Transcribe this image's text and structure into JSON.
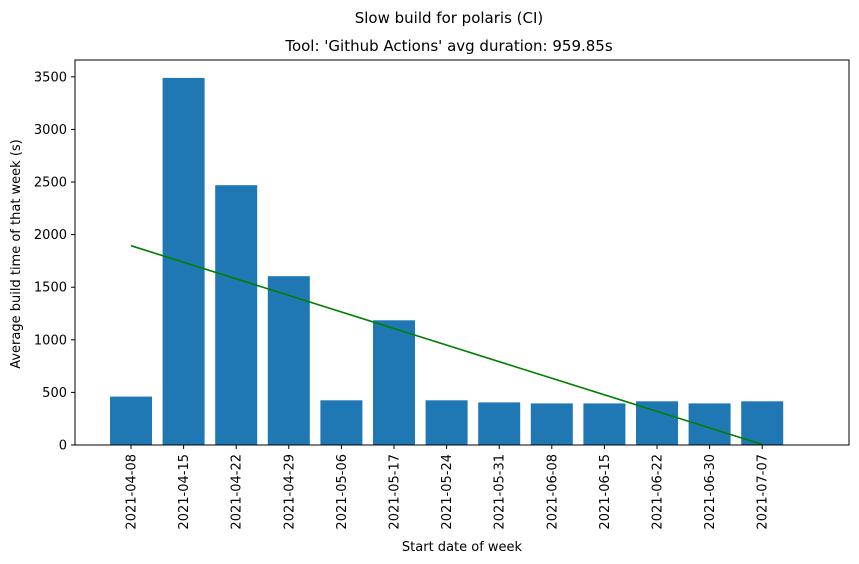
{
  "chart_data": {
    "type": "bar",
    "title": "Slow build for polaris (CI)",
    "subtitle": "Tool: 'Github Actions' avg duration: 959.85s",
    "xlabel": "Start date of week",
    "ylabel": "Average build time of that week (s)",
    "categories": [
      "2021-04-08",
      "2021-04-15",
      "2021-04-22",
      "2021-04-29",
      "2021-05-06",
      "2021-05-17",
      "2021-05-24",
      "2021-05-31",
      "2021-06-08",
      "2021-06-15",
      "2021-06-22",
      "2021-06-30",
      "2021-07-07"
    ],
    "values": [
      460,
      3490,
      2470,
      1605,
      425,
      1185,
      425,
      405,
      395,
      395,
      415,
      395,
      415
    ],
    "trend_line": {
      "start": 1895,
      "end": 5
    },
    "ylim": [
      0,
      3660
    ],
    "yticks": [
      0,
      500,
      1000,
      1500,
      2000,
      2500,
      3000,
      3500
    ],
    "grid": false,
    "bar_color": "#1f77b4",
    "trend_color": "#008000"
  }
}
